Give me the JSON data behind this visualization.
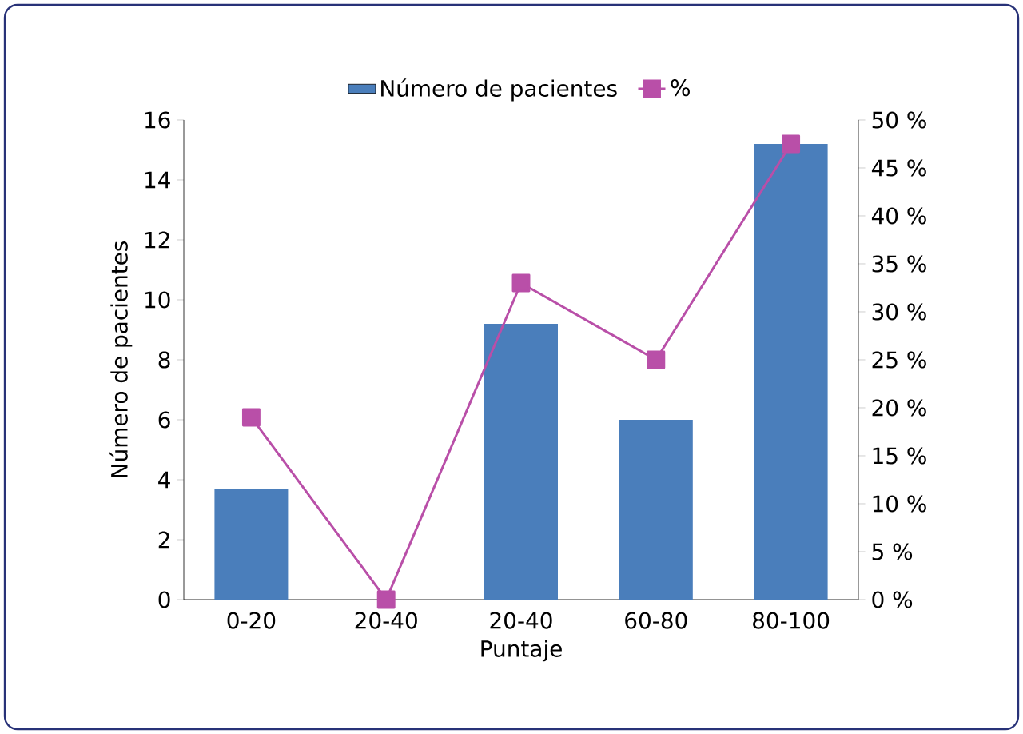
{
  "chart_data": {
    "type": "bar",
    "xlabel": "Puntaje",
    "ylabel": "Número de pacientes",
    "categories": [
      "0-20",
      "20-40",
      "20-40",
      "60-80",
      "80-100"
    ],
    "series": [
      {
        "name": "Número de pacientes",
        "color": "#4a7ebb",
        "values": [
          3.7,
          0,
          9.2,
          6,
          15.2
        ]
      },
      {
        "name": "%",
        "type": "line",
        "axis": "y2",
        "color": "#b94fa8",
        "marker": "square",
        "values": [
          19,
          0,
          33,
          25,
          47.5
        ]
      }
    ],
    "ylim": [
      0,
      16
    ],
    "yticks": [
      0,
      2,
      4,
      6,
      8,
      10,
      12,
      14,
      16
    ],
    "y2lim": [
      0,
      50
    ],
    "y2ticks": [
      {
        "value": 0,
        "label": "0 %"
      },
      {
        "value": 5,
        "label": "5 %"
      },
      {
        "value": 10,
        "label": "10 %"
      },
      {
        "value": 15,
        "label": "15 %"
      },
      {
        "value": 20,
        "label": "20 %"
      },
      {
        "value": 25,
        "label": "25 %"
      },
      {
        "value": 30,
        "label": "30 %"
      },
      {
        "value": 35,
        "label": "35 %"
      },
      {
        "value": 40,
        "label": "40 %"
      },
      {
        "value": 45,
        "label": "45 %"
      },
      {
        "value": 50,
        "label": "50 %"
      }
    ],
    "legend": "top",
    "grid": false
  }
}
